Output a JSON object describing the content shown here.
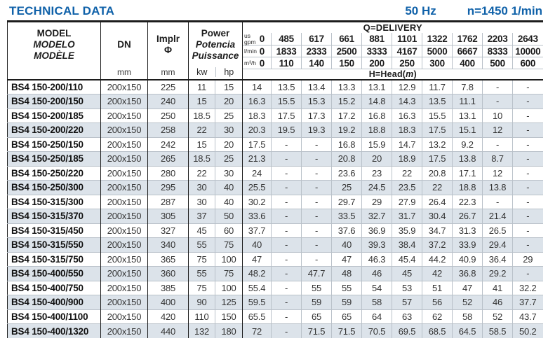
{
  "header": {
    "title": "TECHNICAL DATA",
    "frequency": "50 Hz",
    "speed": "n=1450 1/min"
  },
  "table": {
    "model_header": {
      "en": "MODEL",
      "es": "MODELO",
      "fr": "MODÈLE"
    },
    "dn_header": {
      "label": "DN",
      "unit": "mm"
    },
    "impeller_header": {
      "label": "Implr",
      "symbol": "Φ",
      "unit": "mm"
    },
    "power_header": {
      "en": "Power",
      "es": "Potencia",
      "fr": "Puissance",
      "kw": "kw",
      "hp": "hp"
    },
    "delivery_header": {
      "title": "Q=DELIVERY",
      "unit_rows": [
        {
          "unit": "us\ngpm",
          "zero": "0",
          "values": [
            "485",
            "617",
            "661",
            "881",
            "1101",
            "1322",
            "1762",
            "2203",
            "2643"
          ]
        },
        {
          "unit": "l/min",
          "zero": "0",
          "values": [
            "1833",
            "2333",
            "2500",
            "3333",
            "4167",
            "5000",
            "6667",
            "8333",
            "10000"
          ]
        },
        {
          "unit": "m³/h",
          "zero": "0",
          "values": [
            "110",
            "140",
            "150",
            "200",
            "250",
            "300",
            "400",
            "500",
            "600"
          ]
        }
      ],
      "head_title": {
        "prefix": "H=Head(",
        "m": "m",
        "suffix": ")"
      }
    },
    "rows": [
      {
        "model": "BS4 150-200/110",
        "dn": "200x150",
        "impeller": "225",
        "kw": "11",
        "hp": "15",
        "head": [
          "14",
          "13.5",
          "13.4",
          "13.3",
          "13.1",
          "12.9",
          "11.7",
          "7.8",
          "-",
          "-"
        ]
      },
      {
        "model": "BS4 150-200/150",
        "dn": "200x150",
        "impeller": "240",
        "kw": "15",
        "hp": "20",
        "head": [
          "16.3",
          "15.5",
          "15.3",
          "15.2",
          "14.8",
          "14.3",
          "13.5",
          "11.1",
          "-",
          "-"
        ]
      },
      {
        "model": "BS4 150-200/185",
        "dn": "200x150",
        "impeller": "250",
        "kw": "18.5",
        "hp": "25",
        "head": [
          "18.3",
          "17.5",
          "17.3",
          "17.2",
          "16.8",
          "16.3",
          "15.5",
          "13.1",
          "10",
          "-"
        ]
      },
      {
        "model": "BS4 150-200/220",
        "dn": "200x150",
        "impeller": "258",
        "kw": "22",
        "hp": "30",
        "head": [
          "20.3",
          "19.5",
          "19.3",
          "19.2",
          "18.8",
          "18.3",
          "17.5",
          "15.1",
          "12",
          "-"
        ]
      },
      {
        "model": "BS4 150-250/150",
        "dn": "200x150",
        "impeller": "242",
        "kw": "15",
        "hp": "20",
        "head": [
          "17.5",
          "-",
          "-",
          "16.8",
          "15.9",
          "14.7",
          "13.2",
          "9.2",
          "-",
          "-"
        ]
      },
      {
        "model": "BS4 150-250/185",
        "dn": "200x150",
        "impeller": "265",
        "kw": "18.5",
        "hp": "25",
        "head": [
          "21.3",
          "-",
          "-",
          "20.8",
          "20",
          "18.9",
          "17.5",
          "13.8",
          "8.7",
          "-"
        ]
      },
      {
        "model": "BS4 150-250/220",
        "dn": "200x150",
        "impeller": "280",
        "kw": "22",
        "hp": "30",
        "head": [
          "24",
          "-",
          "-",
          "23.6",
          "23",
          "22",
          "20.8",
          "17.1",
          "12",
          "-"
        ]
      },
      {
        "model": "BS4 150-250/300",
        "dn": "200x150",
        "impeller": "295",
        "kw": "30",
        "hp": "40",
        "head": [
          "25.5",
          "-",
          "-",
          "25",
          "24.5",
          "23.5",
          "22",
          "18.8",
          "13.8",
          "-"
        ]
      },
      {
        "model": "BS4 150-315/300",
        "dn": "200x150",
        "impeller": "287",
        "kw": "30",
        "hp": "40",
        "head": [
          "30.2",
          "-",
          "-",
          "29.7",
          "29",
          "27.9",
          "26.4",
          "22.3",
          "-",
          "-"
        ]
      },
      {
        "model": "BS4 150-315/370",
        "dn": "200x150",
        "impeller": "305",
        "kw": "37",
        "hp": "50",
        "head": [
          "33.6",
          "-",
          "-",
          "33.5",
          "32.7",
          "31.7",
          "30.4",
          "26.7",
          "21.4",
          "-"
        ]
      },
      {
        "model": "BS4 150-315/450",
        "dn": "200x150",
        "impeller": "327",
        "kw": "45",
        "hp": "60",
        "head": [
          "37.7",
          "-",
          "-",
          "37.6",
          "36.9",
          "35.9",
          "34.7",
          "31.3",
          "26.5",
          "-"
        ]
      },
      {
        "model": "BS4 150-315/550",
        "dn": "200x150",
        "impeller": "340",
        "kw": "55",
        "hp": "75",
        "head": [
          "40",
          "-",
          "-",
          "40",
          "39.3",
          "38.4",
          "37.2",
          "33.9",
          "29.4",
          "-"
        ]
      },
      {
        "model": "BS4 150-315/750",
        "dn": "200x150",
        "impeller": "365",
        "kw": "75",
        "hp": "100",
        "head": [
          "47",
          "-",
          "-",
          "47",
          "46.3",
          "45.4",
          "44.2",
          "40.9",
          "36.4",
          "29"
        ]
      },
      {
        "model": "BS4 150-400/550",
        "dn": "200x150",
        "impeller": "360",
        "kw": "55",
        "hp": "75",
        "head": [
          "48.2",
          "-",
          "47.7",
          "48",
          "46",
          "45",
          "42",
          "36.8",
          "29.2",
          "-"
        ]
      },
      {
        "model": "BS4 150-400/750",
        "dn": "200x150",
        "impeller": "385",
        "kw": "75",
        "hp": "100",
        "head": [
          "55.4",
          "-",
          "55",
          "55",
          "54",
          "53",
          "51",
          "47",
          "41",
          "32.2"
        ]
      },
      {
        "model": "BS4 150-400/900",
        "dn": "200x150",
        "impeller": "400",
        "kw": "90",
        "hp": "125",
        "head": [
          "59.5",
          "-",
          "59",
          "59",
          "58",
          "57",
          "56",
          "52",
          "46",
          "37.7"
        ]
      },
      {
        "model": "BS4 150-400/1100",
        "dn": "200x150",
        "impeller": "420",
        "kw": "110",
        "hp": "150",
        "head": [
          "65.5",
          "-",
          "65",
          "65",
          "64",
          "63",
          "62",
          "58",
          "52",
          "43.7"
        ]
      },
      {
        "model": "BS4 150-400/1320",
        "dn": "200x150",
        "impeller": "440",
        "kw": "132",
        "hp": "180",
        "head": [
          "72",
          "-",
          "71.5",
          "71.5",
          "70.5",
          "69.5",
          "68.5",
          "64.5",
          "58.5",
          "50.2"
        ]
      }
    ]
  },
  "colors": {
    "accent": "#0f61a9",
    "row_alt": "#dce3ea",
    "line_dark": "#1c1c1c",
    "line_light": "#b9c1c9",
    "text": "#2b2b2b"
  }
}
